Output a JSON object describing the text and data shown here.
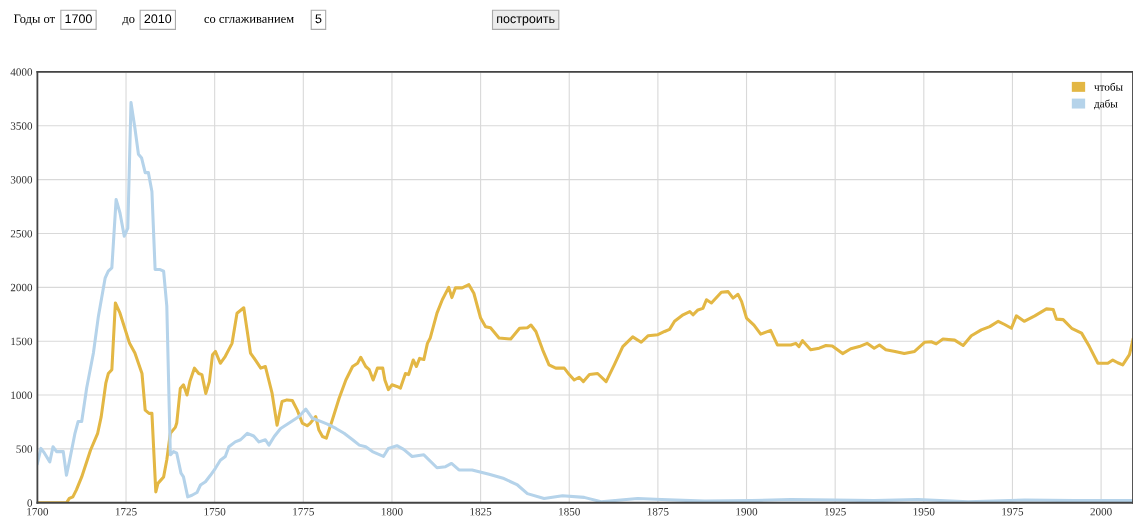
{
  "chart_data": {
    "type": "line",
    "xlim": [
      1700,
      2009
    ],
    "xticks": [
      1700,
      1725,
      1750,
      1775,
      1800,
      1825,
      1850,
      1875,
      1900,
      1925,
      1950,
      1975,
      2000
    ],
    "ylim": [
      0,
      4000
    ],
    "yticks": [
      0,
      500,
      1000,
      1500,
      2000,
      2500,
      3000,
      3500,
      4000
    ],
    "grid": true,
    "legend": "top right",
    "marker": "none",
    "line_style": "solid",
    "annotations": [
      "Годы от",
      "1700",
      "до",
      "2010",
      "со сглаживанием",
      "5",
      "построить"
    ],
    "series": [
      {
        "name": "чтобы",
        "color": "#e3b744",
        "x": [
          1700,
          1708.2,
          1709,
          1710,
          1711,
          1712.5,
          1715,
          1717,
          1718,
          1719.3,
          1720,
          1721,
          1722,
          1723.3,
          1726,
          1727.5,
          1729.5,
          1730.4,
          1731.5,
          1732.3,
          1733.4,
          1734,
          1735.6,
          1736.5,
          1737.5,
          1738.9,
          1739.3,
          1740.3,
          1741.2,
          1742.2,
          1743,
          1744.3,
          1745.5,
          1746.4,
          1747.5,
          1748.5,
          1749.4,
          1750.2,
          1751.6,
          1753,
          1754.9,
          1756.3,
          1758.2,
          1760.1,
          1761.5,
          1763,
          1764.3,
          1766.2,
          1767.6,
          1769,
          1770.4,
          1771.9,
          1773.3,
          1774.7,
          1776.1,
          1777,
          1778.5,
          1779.4,
          1780.4,
          1781.5,
          1783.2,
          1785.1,
          1787,
          1788.9,
          1790.3,
          1791.2,
          1792.6,
          1793.6,
          1794.7,
          1795.9,
          1797.4,
          1798,
          1799,
          1800,
          1801.4,
          1802.4,
          1803.8,
          1804.7,
          1806,
          1806.9,
          1807.8,
          1809,
          1810,
          1810.8,
          1812.7,
          1814.2,
          1816,
          1816.9,
          1817.9,
          1819.8,
          1821.7,
          1823.1,
          1825,
          1826.4,
          1827.8,
          1830.2,
          1833.5,
          1836,
          1838.2,
          1839.2,
          1840.6,
          1842.5,
          1844.3,
          1846.2,
          1848.6,
          1850,
          1851.4,
          1852.8,
          1854,
          1855.7,
          1858,
          1860.4,
          1862.7,
          1865.1,
          1867.9,
          1870.3,
          1872.2,
          1875,
          1876.9,
          1878.3,
          1879.7,
          1882.1,
          1884,
          1884.9,
          1886.3,
          1887.7,
          1888.7,
          1890.1,
          1892.9,
          1894.8,
          1896.2,
          1897.6,
          1898.6,
          1900,
          1902.1,
          1904,
          1906.8,
          1908.7,
          1912.5,
          1913.9,
          1914.8,
          1915.8,
          1918.1,
          1920.5,
          1922.4,
          1924.2,
          1927.1,
          1929.4,
          1931.8,
          1934,
          1936,
          1937.5,
          1939.3,
          1941.9,
          1944.5,
          1947.4,
          1950.2,
          1952.1,
          1953.5,
          1955.4,
          1958.7,
          1961.1,
          1963.4,
          1966.2,
          1968.6,
          1971,
          1972.8,
          1974.7,
          1976.1,
          1978.3,
          1981.3,
          1984.6,
          1986.5,
          1987.4,
          1989.3,
          1991.7,
          1994.5,
          1996.7,
          1999.1,
          2001.9,
          2003.3,
          2004.7,
          2006.1,
          2008,
          2009
        ],
        "values": [
          0,
          0,
          40,
          55,
          120,
          240,
          490,
          645,
          800,
          1110,
          1200,
          1235,
          1855,
          1760,
          1480,
          1390,
          1200,
          860,
          830,
          830,
          100,
          180,
          240,
          400,
          645,
          700,
          740,
          1060,
          1095,
          1000,
          1125,
          1250,
          1200,
          1190,
          1015,
          1125,
          1375,
          1405,
          1295,
          1360,
          1480,
          1760,
          1810,
          1390,
          1325,
          1250,
          1265,
          1015,
          720,
          940,
          955,
          950,
          860,
          740,
          715,
          740,
          800,
          675,
          615,
          600,
          770,
          970,
          1140,
          1265,
          1295,
          1350,
          1265,
          1235,
          1140,
          1250,
          1250,
          1140,
          1050,
          1095,
          1080,
          1065,
          1200,
          1190,
          1325,
          1265,
          1340,
          1330,
          1480,
          1530,
          1760,
          1885,
          2000,
          1905,
          1995,
          1995,
          2025,
          1945,
          1715,
          1635,
          1625,
          1530,
          1520,
          1620,
          1625,
          1650,
          1590,
          1420,
          1280,
          1250,
          1250,
          1190,
          1140,
          1165,
          1125,
          1190,
          1200,
          1125,
          1280,
          1450,
          1540,
          1490,
          1550,
          1560,
          1590,
          1610,
          1685,
          1745,
          1775,
          1745,
          1790,
          1805,
          1885,
          1855,
          1955,
          1960,
          1900,
          1935,
          1870,
          1715,
          1650,
          1565,
          1600,
          1465,
          1465,
          1480,
          1450,
          1505,
          1420,
          1435,
          1460,
          1455,
          1385,
          1430,
          1450,
          1480,
          1435,
          1465,
          1420,
          1405,
          1385,
          1405,
          1490,
          1495,
          1475,
          1520,
          1510,
          1460,
          1550,
          1605,
          1635,
          1685,
          1655,
          1620,
          1735,
          1685,
          1735,
          1800,
          1795,
          1705,
          1700,
          1620,
          1575,
          1450,
          1295,
          1295,
          1325,
          1300,
          1280,
          1375,
          1515
        ]
      },
      {
        "name": "дабы",
        "color": "#b5d3ea",
        "x": [
          1700,
          1701,
          1702,
          1703.5,
          1704.4,
          1705.4,
          1707.3,
          1708.2,
          1709,
          1710.6,
          1711.5,
          1712.5,
          1713.9,
          1715.8,
          1717.2,
          1719.1,
          1720,
          1721,
          1722.2,
          1723.3,
          1724.5,
          1725.5,
          1726.4,
          1727.5,
          1728.5,
          1729.4,
          1730.4,
          1731.3,
          1732.3,
          1733.2,
          1734.6,
          1735.6,
          1736.5,
          1737.5,
          1738.4,
          1739.3,
          1740.5,
          1741.2,
          1742.4,
          1743.6,
          1745,
          1746,
          1747.4,
          1748.8,
          1750.2,
          1751.6,
          1753,
          1754,
          1755.8,
          1757.3,
          1759.2,
          1761,
          1762.5,
          1764.3,
          1765.3,
          1766.8,
          1768.6,
          1771,
          1773.8,
          1775.7,
          1777.5,
          1779.9,
          1781.8,
          1784.2,
          1786.5,
          1788.9,
          1790.8,
          1792.6,
          1794.5,
          1797.6,
          1799,
          1801.4,
          1803.3,
          1805.7,
          1809,
          1812.7,
          1815.1,
          1816.8,
          1818.9,
          1822.6,
          1827.4,
          1831.6,
          1835.4,
          1838.2,
          1842.9,
          1848.1,
          1854.2,
          1859,
          1869.3,
          1876,
          1888.2,
          1901.4,
          1912.5,
          1925,
          1936,
          1948.3,
          1962.5,
          1978.5,
          1992.5,
          2009
        ],
        "values": [
          365,
          505,
          460,
          380,
          520,
          475,
          475,
          255,
          380,
          645,
          755,
          755,
          1065,
          1390,
          1730,
          2085,
          2150,
          2180,
          2815,
          2690,
          2475,
          2550,
          3715,
          3480,
          3235,
          3200,
          3065,
          3065,
          2890,
          2165,
          2165,
          2150,
          1825,
          445,
          475,
          460,
          275,
          240,
          55,
          70,
          95,
          165,
          195,
          255,
          320,
          395,
          430,
          520,
          565,
          585,
          645,
          620,
          565,
          585,
          535,
          615,
          690,
          740,
          800,
          870,
          785,
          755,
          730,
          690,
          645,
          585,
          535,
          520,
          475,
          430,
          505,
          530,
          495,
          430,
          445,
          325,
          335,
          365,
          305,
          305,
          265,
          225,
          165,
          85,
          40,
          65,
          50,
          10,
          40,
          30,
          15,
          20,
          30,
          25,
          20,
          30,
          10,
          25,
          20,
          20
        ]
      }
    ]
  }
}
